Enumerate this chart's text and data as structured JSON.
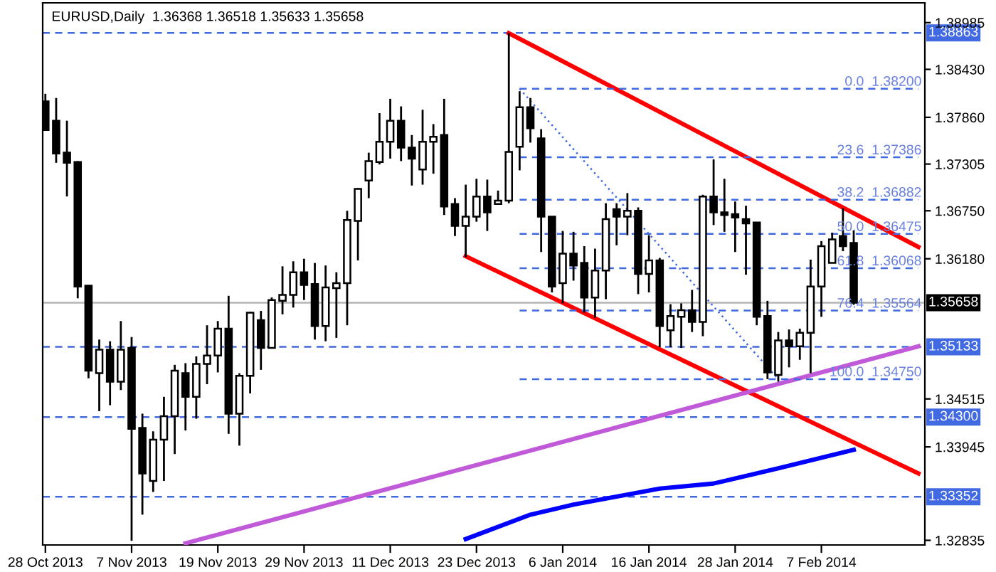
{
  "chart_data": {
    "type": "candlestick",
    "title": "EURUSD,Daily  1.36368 1.36518 1.35633 1.35658",
    "categories": [
      "28 Oct 2013",
      null,
      null,
      null,
      null,
      null,
      null,
      null,
      "7 Nov 2013",
      null,
      null,
      null,
      null,
      null,
      null,
      null,
      "19 Nov 2013",
      null,
      null,
      null,
      null,
      null,
      null,
      null,
      "29 Nov 2013",
      null,
      null,
      null,
      null,
      null,
      null,
      null,
      "11 Dec 2013",
      null,
      null,
      null,
      null,
      null,
      null,
      null,
      "23 Dec 2013",
      null,
      null,
      null,
      null,
      null,
      null,
      null,
      "6 Jan 2014",
      null,
      null,
      null,
      null,
      null,
      null,
      null,
      "16 Jan 2014",
      null,
      null,
      null,
      null,
      null,
      null,
      null,
      "28 Jan 2014",
      null,
      null,
      null,
      null,
      null,
      null,
      null,
      "7 Feb 2014",
      null,
      null,
      null,
      null,
      null,
      null,
      null,
      null,
      null
    ],
    "ohlc": [
      [
        1.3805,
        1.3814,
        1.3771,
        1.3771
      ],
      [
        1.3782,
        1.3809,
        1.3732,
        1.3743
      ],
      [
        1.3744,
        1.3782,
        1.3692,
        1.3732
      ],
      [
        1.3733,
        1.3734,
        1.3571,
        1.3585
      ],
      [
        1.3586,
        1.3586,
        1.3476,
        1.3485
      ],
      [
        1.3482,
        1.3522,
        1.3437,
        1.351
      ],
      [
        1.351,
        1.352,
        1.3444,
        1.3472
      ],
      [
        1.3472,
        1.3544,
        1.3462,
        1.351
      ],
      [
        1.3512,
        1.3525,
        1.3283,
        1.3416
      ],
      [
        1.3417,
        1.3434,
        1.3314,
        1.3363
      ],
      [
        1.3354,
        1.3413,
        1.3341,
        1.3403
      ],
      [
        1.3403,
        1.3454,
        1.3354,
        1.3431
      ],
      [
        1.3431,
        1.3492,
        1.3386,
        1.3485
      ],
      [
        1.3482,
        1.3494,
        1.3414,
        1.3454
      ],
      [
        1.3454,
        1.3502,
        1.3428,
        1.3493
      ],
      [
        1.3493,
        1.3539,
        1.3469,
        1.3503
      ],
      [
        1.3503,
        1.3544,
        1.3483,
        1.3535
      ],
      [
        1.3535,
        1.3574,
        1.341,
        1.3434
      ],
      [
        1.3434,
        1.3482,
        1.3396,
        1.3479
      ],
      [
        1.3479,
        1.3555,
        1.3458,
        1.3554
      ],
      [
        1.3545,
        1.3556,
        1.3486,
        1.3512
      ],
      [
        1.3512,
        1.3572,
        1.3512,
        1.3569
      ],
      [
        1.3568,
        1.3609,
        1.3552,
        1.3575
      ],
      [
        1.3575,
        1.3615,
        1.356,
        1.3602
      ],
      [
        1.3602,
        1.3618,
        1.3569,
        1.3587
      ],
      [
        1.3588,
        1.3613,
        1.3522,
        1.3538
      ],
      [
        1.3538,
        1.361,
        1.352,
        1.3584
      ],
      [
        1.3583,
        1.3602,
        1.3524,
        1.3589
      ],
      [
        1.3589,
        1.3675,
        1.3539,
        1.3664
      ],
      [
        1.3663,
        1.3702,
        1.3616,
        1.3701
      ],
      [
        1.3711,
        1.3744,
        1.369,
        1.3734
      ],
      [
        1.3733,
        1.3791,
        1.373,
        1.3757
      ],
      [
        1.3757,
        1.3808,
        1.3737,
        1.3782
      ],
      [
        1.3782,
        1.3799,
        1.3734,
        1.375
      ],
      [
        1.375,
        1.3765,
        1.3705,
        1.3737
      ],
      [
        1.3724,
        1.3795,
        1.3706,
        1.3757
      ],
      [
        1.3757,
        1.3778,
        1.3719,
        1.3763
      ],
      [
        1.3765,
        1.3808,
        1.367,
        1.368
      ],
      [
        1.3683,
        1.369,
        1.3645,
        1.3657
      ],
      [
        1.3657,
        1.3706,
        1.362,
        1.3668
      ],
      [
        1.3668,
        1.3713,
        1.3662,
        1.3692
      ],
      [
        1.3692,
        1.3712,
        1.3651,
        1.3673
      ],
      [
        1.3683,
        1.3699,
        1.3683,
        1.3687
      ],
      [
        1.3687,
        1.3886,
        1.3684,
        1.3745
      ],
      [
        1.3751,
        1.3817,
        1.3723,
        1.3798
      ],
      [
        1.3798,
        1.3809,
        1.3756,
        1.3773
      ],
      [
        1.3761,
        1.3772,
        1.3626,
        1.3668
      ],
      [
        1.3668,
        1.3668,
        1.3578,
        1.3585
      ],
      [
        1.3589,
        1.3651,
        1.3565,
        1.3624
      ],
      [
        1.3624,
        1.365,
        1.3592,
        1.361
      ],
      [
        1.3613,
        1.3633,
        1.3554,
        1.3572
      ],
      [
        1.3572,
        1.363,
        1.3548,
        1.3604
      ],
      [
        1.3604,
        1.3684,
        1.357,
        1.3665
      ],
      [
        1.3677,
        1.3684,
        1.3634,
        1.3668
      ],
      [
        1.3668,
        1.3696,
        1.3646,
        1.3675
      ],
      [
        1.3675,
        1.3679,
        1.3576,
        1.36
      ],
      [
        1.36,
        1.3646,
        1.3578,
        1.3616
      ],
      [
        1.3616,
        1.3619,
        1.3513,
        1.3538
      ],
      [
        1.3533,
        1.3564,
        1.3513,
        1.355
      ],
      [
        1.3549,
        1.3565,
        1.3512,
        1.3557
      ],
      [
        1.3557,
        1.3581,
        1.3531,
        1.3543
      ],
      [
        1.3543,
        1.3694,
        1.3526,
        1.3692
      ],
      [
        1.3692,
        1.3736,
        1.3658,
        1.3673
      ],
      [
        1.3673,
        1.3713,
        1.365,
        1.367
      ],
      [
        1.3671,
        1.3686,
        1.3626,
        1.3667
      ],
      [
        1.3665,
        1.3681,
        1.3599,
        1.366
      ],
      [
        1.3661,
        1.3661,
        1.3539,
        1.3549
      ],
      [
        1.355,
        1.3568,
        1.3475,
        1.3483
      ],
      [
        1.348,
        1.3531,
        1.3472,
        1.3521
      ],
      [
        1.3521,
        1.3534,
        1.3489,
        1.3514
      ],
      [
        1.3514,
        1.3535,
        1.3498,
        1.353
      ],
      [
        1.353,
        1.3617,
        1.3482,
        1.3585
      ],
      [
        1.3585,
        1.3639,
        1.3549,
        1.3633
      ],
      [
        1.3613,
        1.3649,
        1.3613,
        1.3641
      ],
      [
        1.3645,
        1.3678,
        1.3627,
        1.3633
      ],
      [
        1.36368,
        1.36518,
        1.35633,
        1.35658
      ],
      null,
      null,
      null,
      null,
      null,
      null
    ],
    "series": [
      {
        "type": "line",
        "color": "#ff0000",
        "line_style": "solid",
        "values": [
          null,
          null,
          null,
          null,
          null,
          null,
          null,
          null,
          null,
          null,
          null,
          null,
          null,
          null,
          null,
          null,
          null,
          null,
          null,
          null,
          null,
          null,
          null,
          null,
          null,
          null,
          null,
          null,
          null,
          null,
          null,
          null,
          null,
          null,
          null,
          null,
          null,
          null,
          null,
          null,
          null,
          null,
          null,
          1.3886,
          null,
          null,
          null,
          null,
          null,
          null,
          null,
          null,
          null,
          null,
          null,
          null,
          null,
          null,
          null,
          null,
          null,
          null,
          null,
          null,
          null,
          null,
          null,
          null,
          null,
          null,
          null,
          null,
          null,
          null,
          null,
          null,
          null,
          null,
          null,
          null,
          null,
          1.3632
        ]
      },
      {
        "type": "line",
        "color": "#ff0000",
        "line_style": "solid",
        "values": [
          null,
          null,
          null,
          null,
          null,
          null,
          null,
          null,
          null,
          null,
          null,
          null,
          null,
          null,
          null,
          null,
          null,
          null,
          null,
          null,
          null,
          null,
          null,
          null,
          null,
          null,
          null,
          null,
          null,
          null,
          null,
          null,
          null,
          null,
          null,
          null,
          null,
          null,
          null,
          1.3621,
          null,
          null,
          null,
          null,
          null,
          null,
          null,
          null,
          null,
          null,
          null,
          null,
          null,
          null,
          null,
          null,
          null,
          null,
          null,
          null,
          null,
          null,
          null,
          null,
          null,
          null,
          null,
          null,
          null,
          null,
          null,
          null,
          null,
          null,
          null,
          null,
          null,
          null,
          null,
          null,
          null,
          1.3363
        ]
      },
      {
        "type": "line",
        "color": "#c05ad8",
        "line_style": "solid",
        "values": [
          null,
          null,
          null,
          null,
          null,
          null,
          null,
          null,
          null,
          null,
          null,
          null,
          null,
          1.328,
          null,
          null,
          null,
          null,
          null,
          null,
          null,
          null,
          null,
          null,
          null,
          null,
          null,
          null,
          null,
          null,
          null,
          null,
          null,
          null,
          null,
          null,
          null,
          null,
          null,
          null,
          null,
          null,
          null,
          null,
          null,
          null,
          null,
          null,
          null,
          null,
          null,
          null,
          null,
          null,
          null,
          null,
          null,
          null,
          null,
          null,
          null,
          null,
          null,
          null,
          null,
          null,
          null,
          null,
          null,
          null,
          null,
          null,
          null,
          null,
          null,
          null,
          null,
          null,
          null,
          null,
          null,
          1.3514
        ]
      },
      {
        "type": "line",
        "color": "#0000ff",
        "line_style": "solid",
        "values": [
          null,
          null,
          null,
          null,
          null,
          null,
          null,
          null,
          null,
          null,
          null,
          null,
          null,
          null,
          null,
          null,
          null,
          null,
          null,
          null,
          null,
          null,
          null,
          null,
          null,
          null,
          null,
          null,
          null,
          null,
          null,
          null,
          null,
          null,
          null,
          null,
          null,
          null,
          null,
          1.3285,
          null,
          null,
          null,
          null,
          null,
          1.3314,
          null,
          null,
          null,
          1.3326,
          null,
          null,
          null,
          null,
          null,
          null,
          null,
          1.3345,
          null,
          null,
          null,
          null,
          1.3351,
          null,
          null,
          null,
          null,
          null,
          1.3369,
          null,
          null,
          null,
          null,
          null,
          null,
          1.3391,
          null,
          null,
          null,
          null,
          null,
          null
        ]
      },
      {
        "type": "line",
        "color": "#4169e1",
        "line_style": "dotted",
        "values": [
          null,
          null,
          null,
          null,
          null,
          null,
          null,
          null,
          null,
          null,
          null,
          null,
          null,
          null,
          null,
          null,
          null,
          null,
          null,
          null,
          null,
          null,
          null,
          null,
          null,
          null,
          null,
          null,
          null,
          null,
          null,
          null,
          null,
          null,
          null,
          null,
          null,
          null,
          null,
          null,
          null,
          null,
          null,
          null,
          1.382,
          null,
          null,
          null,
          null,
          null,
          null,
          null,
          null,
          null,
          null,
          null,
          null,
          null,
          null,
          null,
          null,
          null,
          null,
          null,
          null,
          null,
          null,
          null,
          1.3475,
          null,
          null,
          null,
          null,
          null,
          null,
          null,
          null,
          null,
          null,
          null,
          null,
          null
        ]
      },
      {
        "type": "line",
        "color": "#4169e1",
        "line_style": "dashed",
        "values": [
          null,
          null,
          null,
          null,
          null,
          null,
          null,
          null,
          null,
          null,
          null,
          null,
          null,
          null,
          null,
          null,
          null,
          null,
          null,
          null,
          null,
          null,
          null,
          null,
          null,
          null,
          null,
          null,
          null,
          null,
          null,
          null,
          null,
          null,
          null,
          null,
          null,
          null,
          null,
          null,
          null,
          null,
          null,
          null,
          1.382,
          null,
          null,
          null,
          null,
          null,
          null,
          null,
          null,
          null,
          null,
          null,
          null,
          null,
          null,
          null,
          null,
          null,
          null,
          null,
          null,
          null,
          null,
          null,
          null,
          null,
          null,
          null,
          null,
          null,
          null,
          null,
          null,
          null,
          null,
          null,
          null,
          1.382
        ]
      },
      {
        "type": "line",
        "color": "#4169e1",
        "line_style": "dashed",
        "values": [
          null,
          null,
          null,
          null,
          null,
          null,
          null,
          null,
          null,
          null,
          null,
          null,
          null,
          null,
          null,
          null,
          null,
          null,
          null,
          null,
          null,
          null,
          null,
          null,
          null,
          null,
          null,
          null,
          null,
          null,
          null,
          null,
          null,
          null,
          null,
          null,
          null,
          null,
          null,
          null,
          null,
          null,
          null,
          null,
          1.37386,
          null,
          null,
          null,
          null,
          null,
          null,
          null,
          null,
          null,
          null,
          null,
          null,
          null,
          null,
          null,
          null,
          null,
          null,
          null,
          null,
          null,
          null,
          null,
          null,
          null,
          null,
          null,
          null,
          null,
          null,
          null,
          null,
          null,
          null,
          null,
          null,
          1.37386
        ]
      },
      {
        "type": "line",
        "color": "#4169e1",
        "line_style": "dashed",
        "values": [
          null,
          null,
          null,
          null,
          null,
          null,
          null,
          null,
          null,
          null,
          null,
          null,
          null,
          null,
          null,
          null,
          null,
          null,
          null,
          null,
          null,
          null,
          null,
          null,
          null,
          null,
          null,
          null,
          null,
          null,
          null,
          null,
          null,
          null,
          null,
          null,
          null,
          null,
          null,
          null,
          null,
          null,
          null,
          null,
          1.36882,
          null,
          null,
          null,
          null,
          null,
          null,
          null,
          null,
          null,
          null,
          null,
          null,
          null,
          null,
          null,
          null,
          null,
          null,
          null,
          null,
          null,
          null,
          null,
          null,
          null,
          null,
          null,
          null,
          null,
          null,
          null,
          null,
          null,
          null,
          null,
          null,
          1.36882
        ]
      },
      {
        "type": "line",
        "color": "#4169e1",
        "line_style": "dashed",
        "values": [
          null,
          null,
          null,
          null,
          null,
          null,
          null,
          null,
          null,
          null,
          null,
          null,
          null,
          null,
          null,
          null,
          null,
          null,
          null,
          null,
          null,
          null,
          null,
          null,
          null,
          null,
          null,
          null,
          null,
          null,
          null,
          null,
          null,
          null,
          null,
          null,
          null,
          null,
          null,
          null,
          null,
          null,
          null,
          null,
          1.36475,
          null,
          null,
          null,
          null,
          null,
          null,
          null,
          null,
          null,
          null,
          null,
          null,
          null,
          null,
          null,
          null,
          null,
          null,
          null,
          null,
          null,
          null,
          null,
          null,
          null,
          null,
          null,
          null,
          null,
          null,
          null,
          null,
          null,
          null,
          null,
          null,
          1.36475
        ]
      },
      {
        "type": "line",
        "color": "#4169e1",
        "line_style": "dashed",
        "values": [
          null,
          null,
          null,
          null,
          null,
          null,
          null,
          null,
          null,
          null,
          null,
          null,
          null,
          null,
          null,
          null,
          null,
          null,
          null,
          null,
          null,
          null,
          null,
          null,
          null,
          null,
          null,
          null,
          null,
          null,
          null,
          null,
          null,
          null,
          null,
          null,
          null,
          null,
          null,
          null,
          null,
          null,
          null,
          null,
          1.36068,
          null,
          null,
          null,
          null,
          null,
          null,
          null,
          null,
          null,
          null,
          null,
          null,
          null,
          null,
          null,
          null,
          null,
          null,
          null,
          null,
          null,
          null,
          null,
          null,
          null,
          null,
          null,
          null,
          null,
          null,
          null,
          null,
          null,
          null,
          null,
          null,
          1.36068
        ]
      },
      {
        "type": "line",
        "color": "#4169e1",
        "line_style": "dashed",
        "values": [
          null,
          null,
          null,
          null,
          null,
          null,
          null,
          null,
          null,
          null,
          null,
          null,
          null,
          null,
          null,
          null,
          null,
          null,
          null,
          null,
          null,
          null,
          null,
          null,
          null,
          null,
          null,
          null,
          null,
          null,
          null,
          null,
          null,
          null,
          null,
          null,
          null,
          null,
          null,
          null,
          null,
          null,
          null,
          null,
          1.35564,
          null,
          null,
          null,
          null,
          null,
          null,
          null,
          null,
          null,
          null,
          null,
          null,
          null,
          null,
          null,
          null,
          null,
          null,
          null,
          null,
          null,
          null,
          null,
          null,
          null,
          null,
          null,
          null,
          null,
          null,
          null,
          null,
          null,
          null,
          null,
          null,
          1.35564
        ]
      },
      {
        "type": "line",
        "color": "#4169e1",
        "line_style": "dashed",
        "values": [
          null,
          null,
          null,
          null,
          null,
          null,
          null,
          null,
          null,
          null,
          null,
          null,
          null,
          null,
          null,
          null,
          null,
          null,
          null,
          null,
          null,
          null,
          null,
          null,
          null,
          null,
          null,
          null,
          null,
          null,
          null,
          null,
          null,
          null,
          null,
          null,
          null,
          null,
          null,
          null,
          null,
          null,
          null,
          null,
          1.3475,
          null,
          null,
          null,
          null,
          null,
          null,
          null,
          null,
          null,
          null,
          null,
          null,
          null,
          null,
          null,
          null,
          null,
          null,
          null,
          null,
          null,
          null,
          null,
          null,
          null,
          null,
          null,
          null,
          null,
          null,
          null,
          null,
          null,
          null,
          null,
          null,
          1.3475
        ]
      }
    ],
    "annotations": [
      "0.0  1.38200",
      "23.6  1.37386",
      "38.2  1.36882",
      "50.0  1.36475",
      "61.8  1.36068",
      "76.4  1.35564",
      "100.0  1.34750"
    ],
    "ref_lines": [
      {
        "axis": "y",
        "value": 1.38863,
        "label": "1.38863",
        "color": "#4169e1",
        "line_style": "dashed"
      },
      {
        "axis": "y",
        "value": 1.35133,
        "label": "1.35133",
        "color": "#4169e1",
        "line_style": "dashed"
      },
      {
        "axis": "y",
        "value": 1.343,
        "label": "1.34300",
        "color": "#4169e1",
        "line_style": "dashed"
      },
      {
        "axis": "y",
        "value": 1.33352,
        "label": "1.33352",
        "color": "#4169e1",
        "line_style": "dashed"
      },
      {
        "axis": "y",
        "value": 1.35658,
        "label": "1.35658",
        "color": "#b4b4b4",
        "line_style": "solid"
      }
    ],
    "ylim": [
      1.3278,
      1.3922
    ],
    "yticks": [
      {
        "value": 1.38985,
        "label": "1.38985"
      },
      {
        "value": 1.3843,
        "label": "1.38430"
      },
      {
        "value": 1.3786,
        "label": "1.37860"
      },
      {
        "value": 1.37305,
        "label": "1.37305"
      },
      {
        "value": 1.3675,
        "label": "1.36750"
      },
      {
        "value": 1.3618,
        "label": "1.36180"
      },
      {
        "value": 1.34515,
        "label": "1.34515"
      },
      {
        "value": 1.33945,
        "label": "1.33945"
      },
      {
        "value": 1.32835,
        "label": "1.32835"
      }
    ],
    "grid": false,
    "legend": false
  }
}
